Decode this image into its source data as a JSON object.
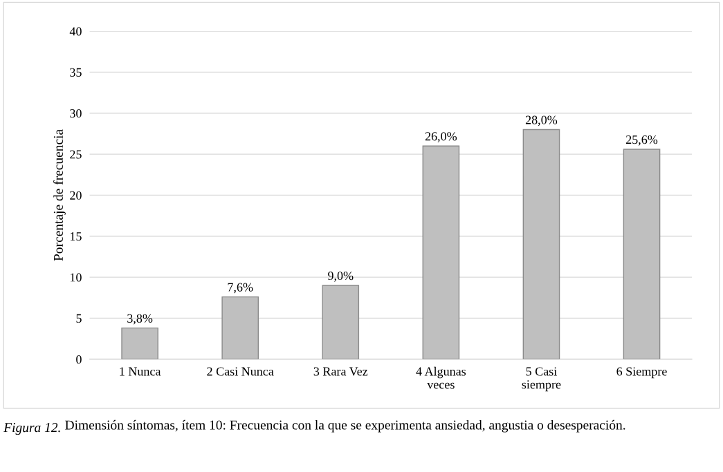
{
  "chart_data": {
    "type": "bar",
    "categories": [
      "1 Nunca",
      "2 Casi Nunca",
      "3 Rara Vez",
      "4 Algunas\nveces",
      "5 Casi\nsiempre",
      "6 Siempre"
    ],
    "values": [
      3.8,
      7.6,
      9.0,
      26.0,
      28.0,
      25.6
    ],
    "value_labels": [
      "3,8%",
      "7,6%",
      "9,0%",
      "26,0%",
      "28,0%",
      "25,6%"
    ],
    "color": "#bfbfbf",
    "ylabel": "Porcentaje de frecuencia",
    "ylim": [
      0,
      40
    ],
    "yticks": [
      0,
      5,
      10,
      15,
      20,
      25,
      30,
      35,
      40
    ],
    "grid": "y",
    "legend": false,
    "annotations": [
      "Figura 12.",
      "Dimensión síntomas, ítem 10: Frecuencia con la que se experimenta ansiedad, angustia o desesperación."
    ]
  }
}
